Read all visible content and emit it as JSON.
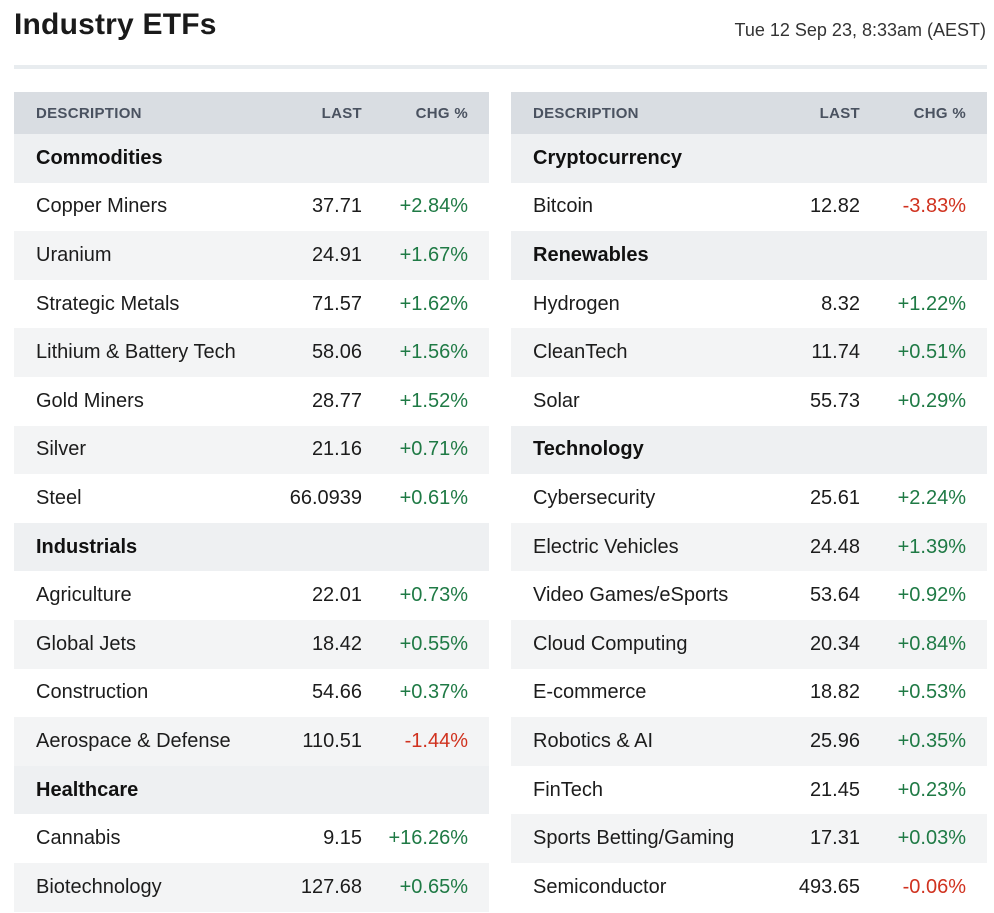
{
  "header": {
    "title": "Industry ETFs",
    "timestamp": "Tue 12 Sep 23, 8:33am (AEST)"
  },
  "columns": {
    "description": "DESCRIPTION",
    "last": "LAST",
    "chg": "CHG %"
  },
  "colors": {
    "positive": "#1f7a45",
    "negative": "#d0321f",
    "header_bg": "#d9dde2"
  },
  "left_table": {
    "groups": [
      {
        "name": "Commodities",
        "rows": [
          {
            "desc": "Copper Miners",
            "last": "37.71",
            "chg": "+2.84%"
          },
          {
            "desc": "Uranium",
            "last": "24.91",
            "chg": "+1.67%"
          },
          {
            "desc": "Strategic Metals",
            "last": "71.57",
            "chg": "+1.62%"
          },
          {
            "desc": "Lithium & Battery Tech",
            "last": "58.06",
            "chg": "+1.56%"
          },
          {
            "desc": "Gold Miners",
            "last": "28.77",
            "chg": "+1.52%"
          },
          {
            "desc": "Silver",
            "last": "21.16",
            "chg": "+0.71%"
          },
          {
            "desc": "Steel",
            "last": "66.0939",
            "chg": "+0.61%"
          }
        ]
      },
      {
        "name": "Industrials",
        "rows": [
          {
            "desc": "Agriculture",
            "last": "22.01",
            "chg": "+0.73%"
          },
          {
            "desc": "Global Jets",
            "last": "18.42",
            "chg": "+0.55%"
          },
          {
            "desc": "Construction",
            "last": "54.66",
            "chg": "+0.37%"
          },
          {
            "desc": "Aerospace & Defense",
            "last": "110.51",
            "chg": "-1.44%"
          }
        ]
      },
      {
        "name": "Healthcare",
        "rows": [
          {
            "desc": "Cannabis",
            "last": "9.15",
            "chg": "+16.26%"
          },
          {
            "desc": "Biotechnology",
            "last": "127.68",
            "chg": "+0.65%"
          }
        ]
      }
    ]
  },
  "right_table": {
    "groups": [
      {
        "name": "Cryptocurrency",
        "rows": [
          {
            "desc": "Bitcoin",
            "last": "12.82",
            "chg": "-3.83%"
          }
        ]
      },
      {
        "name": "Renewables",
        "rows": [
          {
            "desc": "Hydrogen",
            "last": "8.32",
            "chg": "+1.22%"
          },
          {
            "desc": "CleanTech",
            "last": "11.74",
            "chg": "+0.51%"
          },
          {
            "desc": "Solar",
            "last": "55.73",
            "chg": "+0.29%"
          }
        ]
      },
      {
        "name": "Technology",
        "rows": [
          {
            "desc": "Cybersecurity",
            "last": "25.61",
            "chg": "+2.24%"
          },
          {
            "desc": "Electric Vehicles",
            "last": "24.48",
            "chg": "+1.39%"
          },
          {
            "desc": "Video Games/eSports",
            "last": "53.64",
            "chg": "+0.92%"
          },
          {
            "desc": "Cloud Computing",
            "last": "20.34",
            "chg": "+0.84%"
          },
          {
            "desc": "E-commerce",
            "last": "18.82",
            "chg": "+0.53%"
          },
          {
            "desc": "Robotics & AI",
            "last": "25.96",
            "chg": "+0.35%"
          },
          {
            "desc": "FinTech",
            "last": "21.45",
            "chg": "+0.23%"
          },
          {
            "desc": "Sports Betting/Gaming",
            "last": "17.31",
            "chg": "+0.03%"
          },
          {
            "desc": "Semiconductor",
            "last": "493.65",
            "chg": "-0.06%"
          }
        ]
      }
    ]
  }
}
